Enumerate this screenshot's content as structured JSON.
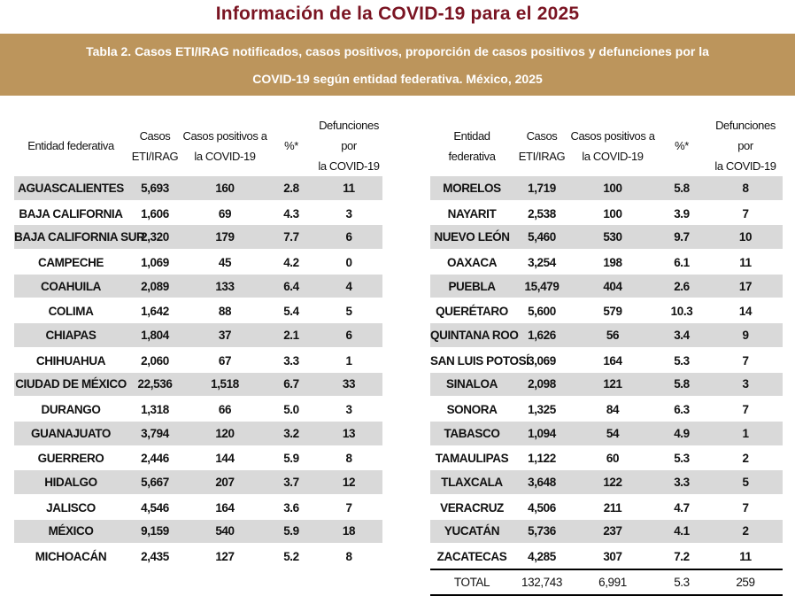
{
  "title": "Información de la COVID-19 para el 2025",
  "banner": {
    "line1": "Tabla 2. Casos ETI/IRAG notificados, casos positivos, proporción de casos positivos  y defunciones por la",
    "line2": "COVID-19 según entidad federativa. México, 2025"
  },
  "colors": {
    "title": "#7a1422",
    "banner_bg": "#bc955c",
    "row_shade": "#d9d9d9"
  },
  "headers": {
    "entidad": "Entidad federativa",
    "casos_l1": "Casos",
    "casos_l2": "ETI/IRAG",
    "positivos_l1": "Casos positivos a",
    "positivos_l2": "la COVID-19",
    "pct": "%*",
    "def_l1": "Defunciones por",
    "def_l2": "la COVID-19"
  },
  "left_rows": [
    {
      "entidad": "AGUASCALIENTES",
      "casos": "5,693",
      "positivos": "160",
      "pct": "2.8",
      "def": "11"
    },
    {
      "entidad": "BAJA CALIFORNIA",
      "casos": "1,606",
      "positivos": "69",
      "pct": "4.3",
      "def": "3"
    },
    {
      "entidad": "BAJA CALIFORNIA SUR",
      "casos": "2,320",
      "positivos": "179",
      "pct": "7.7",
      "def": "6"
    },
    {
      "entidad": "CAMPECHE",
      "casos": "1,069",
      "positivos": "45",
      "pct": "4.2",
      "def": "0"
    },
    {
      "entidad": "COAHUILA",
      "casos": "2,089",
      "positivos": "133",
      "pct": "6.4",
      "def": "4"
    },
    {
      "entidad": "COLIMA",
      "casos": "1,642",
      "positivos": "88",
      "pct": "5.4",
      "def": "5"
    },
    {
      "entidad": "CHIAPAS",
      "casos": "1,804",
      "positivos": "37",
      "pct": "2.1",
      "def": "6"
    },
    {
      "entidad": "CHIHUAHUA",
      "casos": "2,060",
      "positivos": "67",
      "pct": "3.3",
      "def": "1"
    },
    {
      "entidad": "CIUDAD DE MÉXICO",
      "casos": "22,536",
      "positivos": "1,518",
      "pct": "6.7",
      "def": "33"
    },
    {
      "entidad": "DURANGO",
      "casos": "1,318",
      "positivos": "66",
      "pct": "5.0",
      "def": "3"
    },
    {
      "entidad": "GUANAJUATO",
      "casos": "3,794",
      "positivos": "120",
      "pct": "3.2",
      "def": "13"
    },
    {
      "entidad": "GUERRERO",
      "casos": "2,446",
      "positivos": "144",
      "pct": "5.9",
      "def": "8"
    },
    {
      "entidad": "HIDALGO",
      "casos": "5,667",
      "positivos": "207",
      "pct": "3.7",
      "def": "12"
    },
    {
      "entidad": "JALISCO",
      "casos": "4,546",
      "positivos": "164",
      "pct": "3.6",
      "def": "7"
    },
    {
      "entidad": "MÉXICO",
      "casos": "9,159",
      "positivos": "540",
      "pct": "5.9",
      "def": "18"
    },
    {
      "entidad": "MICHOACÁN",
      "casos": "2,435",
      "positivos": "127",
      "pct": "5.2",
      "def": "8"
    }
  ],
  "right_rows": [
    {
      "entidad": "MORELOS",
      "casos": "1,719",
      "positivos": "100",
      "pct": "5.8",
      "def": "8"
    },
    {
      "entidad": "NAYARIT",
      "casos": "2,538",
      "positivos": "100",
      "pct": "3.9",
      "def": "7"
    },
    {
      "entidad": "NUEVO LEÓN",
      "casos": "5,460",
      "positivos": "530",
      "pct": "9.7",
      "def": "10"
    },
    {
      "entidad": "OAXACA",
      "casos": "3,254",
      "positivos": "198",
      "pct": "6.1",
      "def": "11"
    },
    {
      "entidad": "PUEBLA",
      "casos": "15,479",
      "positivos": "404",
      "pct": "2.6",
      "def": "17"
    },
    {
      "entidad": "QUERÉTARO",
      "casos": "5,600",
      "positivos": "579",
      "pct": "10.3",
      "def": "14"
    },
    {
      "entidad": "QUINTANA ROO",
      "casos": "1,626",
      "positivos": "56",
      "pct": "3.4",
      "def": "9"
    },
    {
      "entidad": "SAN LUIS POTOSÍ",
      "casos": "3,069",
      "positivos": "164",
      "pct": "5.3",
      "def": "7"
    },
    {
      "entidad": "SINALOA",
      "casos": "2,098",
      "positivos": "121",
      "pct": "5.8",
      "def": "3"
    },
    {
      "entidad": "SONORA",
      "casos": "1,325",
      "positivos": "84",
      "pct": "6.3",
      "def": "7"
    },
    {
      "entidad": "TABASCO",
      "casos": "1,094",
      "positivos": "54",
      "pct": "4.9",
      "def": "1"
    },
    {
      "entidad": "TAMAULIPAS",
      "casos": "1,122",
      "positivos": "60",
      "pct": "5.3",
      "def": "2"
    },
    {
      "entidad": "TLAXCALA",
      "casos": "3,648",
      "positivos": "122",
      "pct": "3.3",
      "def": "5"
    },
    {
      "entidad": "VERACRUZ",
      "casos": "4,506",
      "positivos": "211",
      "pct": "4.7",
      "def": "7"
    },
    {
      "entidad": "YUCATÁN",
      "casos": "5,736",
      "positivos": "237",
      "pct": "4.1",
      "def": "2"
    },
    {
      "entidad": "ZACATECAS",
      "casos": "4,285",
      "positivos": "307",
      "pct": "7.2",
      "def": "11"
    }
  ],
  "total": {
    "entidad": "TOTAL",
    "casos": "132,743",
    "positivos": "6,991",
    "pct": "5.3",
    "def": "259"
  }
}
